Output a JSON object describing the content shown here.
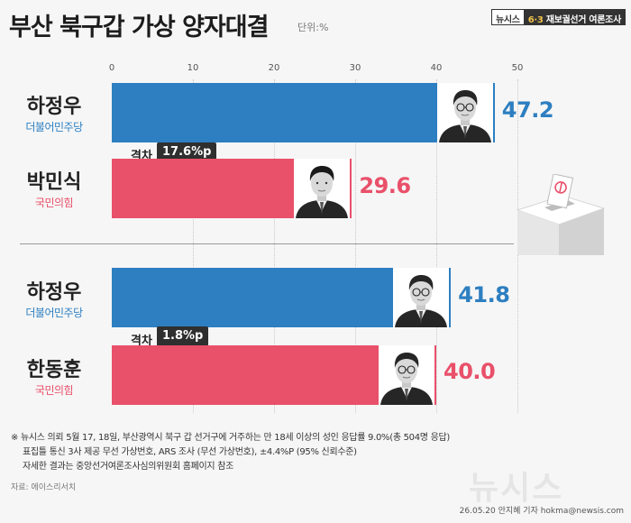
{
  "header": {
    "title": "부산 북구갑 가상 양자대결",
    "unit": "단위:%",
    "badge_brand": "뉴시스",
    "badge_event_num": "6·3",
    "badge_event": "재보궐선거 여론조사"
  },
  "chart_data": [
    {
      "type": "bar",
      "orientation": "horizontal",
      "x_ticks": [
        0,
        10,
        20,
        30,
        40,
        50
      ],
      "xlim": [
        0,
        50
      ],
      "categories": [
        "하정우",
        "박민식"
      ],
      "parties": [
        "더불어민주당",
        "국민의힘"
      ],
      "values": [
        47.2,
        29.6
      ],
      "value_labels": [
        "47.2",
        "29.6"
      ],
      "colors": [
        "#2d7fc1",
        "#e9506a"
      ],
      "gap_label": "격차",
      "gap_value": "17.6%p"
    },
    {
      "type": "bar",
      "orientation": "horizontal",
      "x_ticks": [
        0,
        10,
        20,
        30,
        40,
        50
      ],
      "xlim": [
        0,
        50
      ],
      "categories": [
        "하정우",
        "한동훈"
      ],
      "parties": [
        "더불어민주당",
        "국민의힘"
      ],
      "values": [
        41.8,
        40.0
      ],
      "value_labels": [
        "41.8",
        "40.0"
      ],
      "colors": [
        "#2d7fc1",
        "#e9506a"
      ],
      "gap_label": "격차",
      "gap_value": "1.8%p"
    }
  ],
  "notes": [
    "※ 뉴시스 의뢰 5월 17, 18일, 부산광역시 북구 갑 선거구에 거주하는 만 18세 이상의 성인  응답률 9.0%(총 504명 응답)",
    "표집틀 통신 3사 제공 무선 가상번호, ARS 조사 (무선 가상번호), ±4.4%P (95% 신뢰수준)",
    "자세한 결과는 중앙선거여론조사심의위원회 홈페이지 참조"
  ],
  "source": "자료: 에이스리서치",
  "credit": "26.05.20 안지혜 기자 hokma@newsis.com",
  "watermark": "뉴시스"
}
